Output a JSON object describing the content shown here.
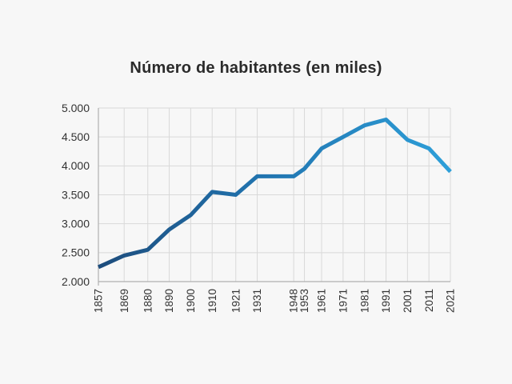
{
  "title": "Número de habitantes (en miles)",
  "chart_data": {
    "type": "line",
    "title": "Número de habitantes (en miles)",
    "xlabel": "",
    "ylabel": "",
    "x": [
      1857,
      1869,
      1880,
      1890,
      1900,
      1910,
      1921,
      1931,
      1948,
      1953,
      1961,
      1971,
      1981,
      1991,
      2001,
      2011,
      2021
    ],
    "x_tick_labels": [
      "1857",
      "1869",
      "1880",
      "1890",
      "1900",
      "1910",
      "1921",
      "1931",
      "1948",
      "1953",
      "1961",
      "1971",
      "1981",
      "1991",
      "2001",
      "2011",
      "2021"
    ],
    "values": [
      2250,
      2450,
      2550,
      2900,
      3150,
      3550,
      3500,
      3820,
      3820,
      3950,
      4300,
      4500,
      4700,
      4800,
      4450,
      4300,
      3900
    ],
    "series_name": "Número de habitantes (en miles)",
    "xlim": [
      1857,
      2021
    ],
    "ylim": [
      2000,
      5000
    ],
    "y_ticks": [
      2000,
      2500,
      3000,
      3500,
      4000,
      4500,
      5000
    ],
    "y_tick_labels": [
      "2.000",
      "2.500",
      "3.000",
      "3.500",
      "4.000",
      "4.500",
      "5.000"
    ],
    "x_scale": "linear-year",
    "grid": true,
    "legend": "none"
  },
  "colors": {
    "background": "#f7f7f7",
    "gridline": "#d9d9d9",
    "axis": "#b0b0b0",
    "tick_text": "#333333",
    "title_text": "#2b2b2b",
    "line_gradient_start": "#1d4c7c",
    "line_gradient_mid": "#2173ae",
    "line_gradient_end": "#2d9fd9"
  },
  "style": {
    "line_width": 5
  }
}
